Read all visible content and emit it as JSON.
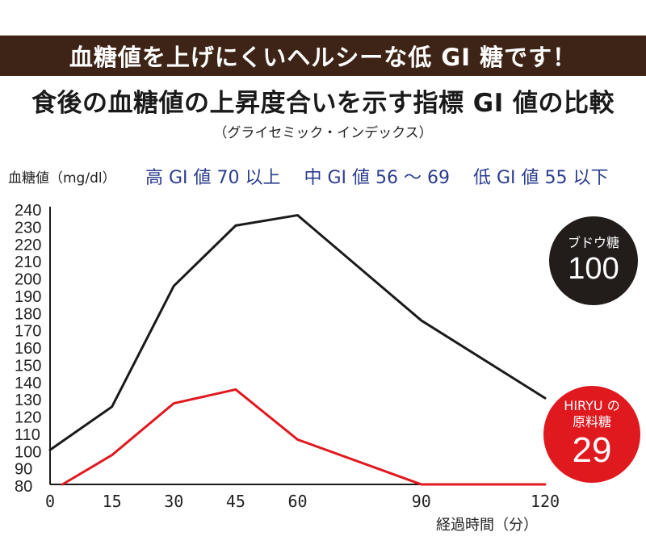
{
  "banner": {
    "text": "血糖値を上げにくいヘルシーな低 GI 糖です！"
  },
  "headline": {
    "text": "食後の血糖値の上昇度合いを示す指標 GI 値の比較"
  },
  "subhead": {
    "text": "（グライセミック・インデックス）"
  },
  "legend_ranges": {
    "high": "高 GI 値 70 以上",
    "mid": "中 GI 値 56 〜 69",
    "low": "低 GI 値 55 以下"
  },
  "badges": {
    "glucose": {
      "label": "ブドウ糖",
      "value": "100"
    },
    "hiryu": {
      "label1": "HIRYU の",
      "label2": "原料糖",
      "value": "29"
    }
  },
  "chart_data": {
    "type": "line",
    "ylabel": "血糖値（mg/dl）",
    "xlabel": "経過時間（分）",
    "x_ticks": [
      0,
      15,
      30,
      45,
      60,
      90,
      120
    ],
    "y_ticks": [
      80,
      90,
      100,
      110,
      120,
      130,
      140,
      150,
      160,
      170,
      180,
      190,
      200,
      210,
      220,
      230,
      240
    ],
    "xlim": [
      0,
      120
    ],
    "ylim": [
      80,
      240
    ],
    "grid": false,
    "series": [
      {
        "name": "ブドウ糖",
        "color": "#1a1a1a",
        "x": [
          0,
          15,
          30,
          45,
          60,
          90,
          120
        ],
        "y": [
          100,
          125,
          195,
          230,
          236,
          175,
          130
        ]
      },
      {
        "name": "HIRYU の原料糖",
        "color": "#e0191f",
        "x": [
          3,
          15,
          30,
          45,
          60,
          90,
          120
        ],
        "y": [
          80,
          97,
          127,
          135,
          106,
          80,
          80
        ]
      }
    ]
  }
}
